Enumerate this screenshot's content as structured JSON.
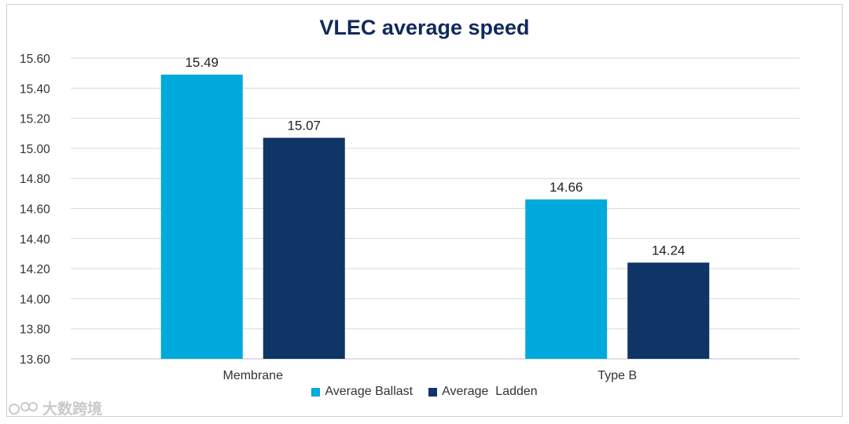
{
  "chart_data": {
    "type": "bar",
    "title": "VLEC average speed",
    "categories": [
      "Membrane",
      "Type B"
    ],
    "series": [
      {
        "name": "Average Ballast",
        "color": "#00a9dc",
        "values": [
          15.49,
          14.66
        ]
      },
      {
        "name": "Average  Ladden",
        "color": "#0f3567",
        "values": [
          15.07,
          14.24
        ]
      }
    ],
    "data_labels": [
      [
        "15.49",
        "14.66"
      ],
      [
        "15.07",
        "14.24"
      ]
    ],
    "ylim": [
      13.6,
      15.6
    ],
    "yticks": [
      "15.60",
      "15.40",
      "15.20",
      "15.00",
      "14.80",
      "14.60",
      "14.40",
      "14.20",
      "14.00",
      "13.80",
      "13.60"
    ],
    "xlabel": "",
    "ylabel": "",
    "grid": true,
    "legend_position": "bottom"
  },
  "watermark": {
    "text": "大数跨境",
    "icon": "logo-icon"
  }
}
